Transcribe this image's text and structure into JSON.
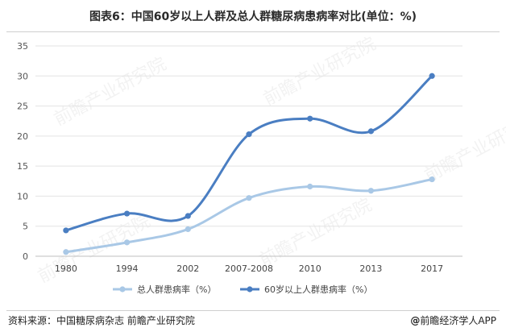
{
  "title": "图表6：中国60岁以上人群及总人群糖尿病患病率对比(单位：%)",
  "source": "资料来源：中国糖尿病杂志 前瞻产业研究院",
  "brand": {
    "icon": "@",
    "text": "前瞻经济学人APP"
  },
  "watermark": "前瞻产业研究院",
  "colors": {
    "total": "#a9c8e6",
    "elderly": "#4a7ec2",
    "grid": "#e3e3e3",
    "axis": "#bfbfbf"
  },
  "chart_data": {
    "type": "line",
    "categories": [
      "1980",
      "1994",
      "2002",
      "2007-2008",
      "2010",
      "2013",
      "2017"
    ],
    "yticks": [
      0,
      5,
      10,
      15,
      20,
      25,
      30,
      35
    ],
    "ylim": [
      0,
      35
    ],
    "grid": true,
    "legend_position": "bottom",
    "smooth": true,
    "series": [
      {
        "name": "总人群患病率（%）",
        "values": [
          0.7,
          2.3,
          4.5,
          9.7,
          11.6,
          10.9,
          12.8
        ],
        "color_key": "total"
      },
      {
        "name": "60岁以上人群患病率（%）",
        "values": [
          4.3,
          7.1,
          6.7,
          20.3,
          22.9,
          20.8,
          30.0
        ],
        "color_key": "elderly"
      }
    ]
  }
}
